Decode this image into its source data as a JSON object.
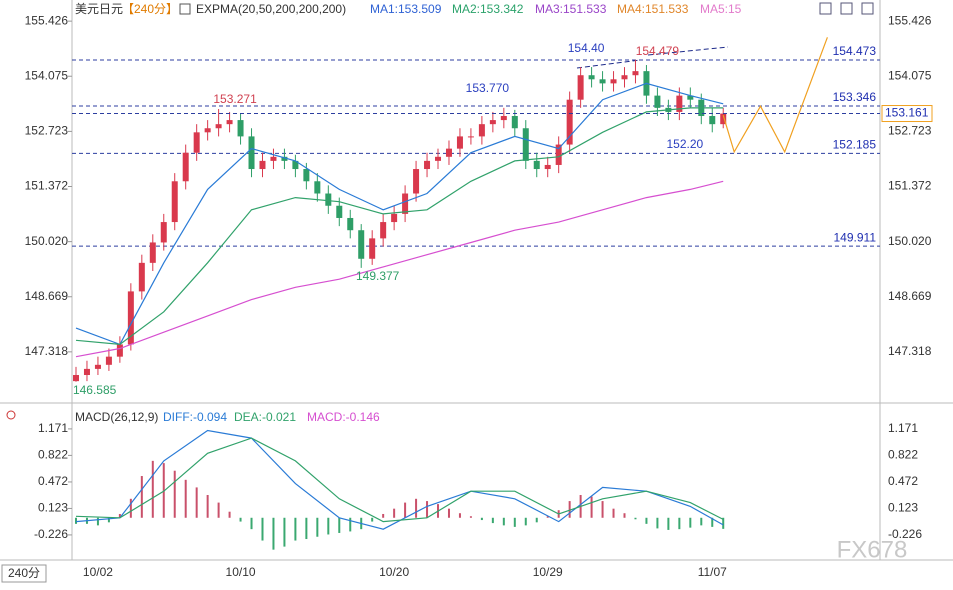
{
  "header": {
    "symbol": "美元日元",
    "period": "【240分】",
    "indicator": "EXPMA(20,50,200,200,200)",
    "indicators": [
      {
        "text": "MA1:153.509",
        "color": "#2f62d4"
      },
      {
        "text": "MA2:153.342",
        "color": "#2aa26a"
      },
      {
        "text": "MA3:151.533",
        "color": "#9a45c8"
      },
      {
        "text": "MA4:151.533",
        "color": "#e0862a"
      },
      {
        "text": "MA5:15",
        "color": "#e27acb"
      }
    ]
  },
  "footer": {
    "period": "240分",
    "watermark": "FX678"
  },
  "chart_data": [
    {
      "type": "candlestick",
      "up_color": "#d9394d",
      "down_color": "#2e9e67",
      "categories": [
        null,
        null,
        "10/02",
        null,
        null,
        null,
        null,
        null,
        null,
        null,
        null,
        null,
        null,
        null,
        null,
        "10/10",
        null,
        null,
        null,
        null,
        null,
        null,
        null,
        null,
        null,
        null,
        null,
        null,
        null,
        "10/20",
        null,
        null,
        null,
        null,
        null,
        null,
        null,
        null,
        null,
        null,
        null,
        null,
        null,
        "10/29",
        null,
        null,
        null,
        null,
        null,
        null,
        null,
        null,
        null,
        null,
        null,
        null,
        null,
        null,
        "11/07",
        null
      ],
      "open": [
        146.6,
        146.75,
        146.9,
        147.0,
        147.2,
        147.5,
        148.8,
        149.5,
        150.0,
        150.5,
        151.5,
        152.2,
        152.7,
        152.8,
        152.9,
        153.0,
        152.6,
        151.8,
        152.0,
        152.1,
        152.0,
        151.8,
        151.5,
        151.2,
        150.9,
        150.6,
        150.3,
        149.6,
        150.1,
        150.5,
        150.7,
        151.2,
        151.8,
        152.0,
        152.1,
        152.3,
        152.6,
        152.6,
        152.9,
        153.0,
        153.1,
        152.8,
        152.0,
        151.8,
        151.9,
        152.4,
        153.5,
        154.1,
        154.0,
        153.9,
        154.0,
        154.1,
        154.2,
        153.6,
        153.3,
        153.2,
        153.6,
        153.5,
        153.1,
        152.9
      ],
      "high": [
        146.95,
        147.1,
        147.2,
        147.4,
        147.7,
        149.0,
        149.7,
        150.2,
        150.7,
        151.7,
        152.4,
        152.9,
        153.0,
        153.271,
        153.2,
        153.15,
        152.8,
        152.2,
        152.3,
        152.3,
        152.15,
        151.95,
        151.7,
        151.4,
        151.1,
        150.8,
        150.45,
        150.3,
        150.7,
        150.9,
        151.4,
        152.0,
        152.2,
        152.3,
        152.5,
        152.8,
        152.8,
        153.1,
        153.2,
        153.3,
        153.25,
        153.0,
        152.2,
        152.1,
        152.6,
        153.7,
        154.3,
        154.3,
        154.2,
        154.2,
        154.3,
        154.479,
        154.35,
        153.8,
        153.5,
        153.8,
        153.8,
        153.65,
        153.3,
        153.3
      ],
      "low": [
        146.585,
        146.6,
        146.75,
        146.85,
        147.05,
        147.35,
        148.6,
        149.3,
        149.8,
        150.3,
        151.3,
        152.0,
        152.5,
        152.6,
        152.7,
        152.4,
        151.6,
        151.6,
        151.8,
        151.8,
        151.6,
        151.3,
        151.0,
        150.7,
        150.4,
        150.1,
        149.377,
        149.45,
        149.9,
        150.3,
        150.5,
        151.0,
        151.6,
        151.8,
        151.9,
        152.1,
        152.4,
        152.4,
        152.7,
        152.8,
        152.6,
        151.8,
        151.6,
        151.6,
        151.7,
        152.2,
        153.3,
        153.8,
        153.7,
        153.7,
        153.8,
        153.9,
        153.4,
        153.1,
        153.0,
        153.0,
        153.3,
        152.9,
        152.7,
        152.8
      ],
      "close": [
        146.75,
        146.9,
        147.0,
        147.2,
        147.5,
        148.8,
        149.5,
        150.0,
        150.5,
        151.5,
        152.2,
        152.7,
        152.8,
        152.9,
        153.0,
        152.6,
        151.8,
        152.0,
        152.1,
        152.0,
        151.8,
        151.5,
        151.2,
        150.9,
        150.6,
        150.3,
        149.6,
        150.1,
        150.5,
        150.7,
        151.2,
        151.8,
        152.0,
        152.1,
        152.3,
        152.6,
        152.6,
        152.9,
        153.0,
        153.1,
        152.8,
        152.0,
        151.8,
        151.9,
        152.4,
        153.5,
        154.1,
        154.0,
        153.9,
        154.0,
        154.1,
        154.2,
        153.6,
        153.3,
        153.2,
        153.6,
        153.5,
        153.1,
        152.9,
        153.16
      ],
      "series": [
        {
          "color": "#2a7bd6",
          "x": [
            0,
            4,
            8,
            12,
            16,
            20,
            24,
            28,
            32,
            36,
            40,
            44,
            48,
            52,
            56,
            59
          ],
          "values": [
            147.9,
            147.5,
            149.5,
            151.3,
            152.3,
            152.0,
            151.3,
            150.8,
            151.2,
            152.2,
            152.6,
            152.3,
            153.5,
            153.9,
            153.6,
            153.4
          ]
        },
        {
          "color": "#31a26b",
          "x": [
            0,
            4,
            8,
            12,
            16,
            20,
            24,
            28,
            32,
            36,
            40,
            44,
            48,
            52,
            56,
            59
          ],
          "values": [
            147.6,
            147.5,
            148.3,
            149.5,
            150.8,
            151.1,
            151.0,
            150.7,
            150.8,
            151.5,
            152.0,
            152.1,
            152.7,
            153.2,
            153.3,
            153.3
          ]
        },
        {
          "color": "#d64fd0",
          "x": [
            0,
            4,
            8,
            12,
            16,
            20,
            24,
            28,
            32,
            36,
            40,
            44,
            48,
            52,
            56,
            59
          ],
          "values": [
            147.2,
            147.4,
            147.8,
            148.2,
            148.6,
            148.9,
            149.1,
            149.4,
            149.7,
            150.0,
            150.3,
            150.5,
            150.8,
            151.1,
            151.3,
            151.5
          ]
        },
        {
          "color": "#f0a020",
          "x": [
            59,
            60,
            62.4,
            64.6,
            68.5
          ],
          "values": [
            153.12,
            152.22,
            153.34,
            152.22,
            155.03
          ]
        }
      ],
      "levels": [
        154.473,
        153.346,
        152.185,
        149.911
      ],
      "last_price": 153.161,
      "annotations": [
        {
          "value": 153.271,
          "label": "153.271",
          "x": 14.5,
          "color": "#d04050"
        },
        {
          "value": 149.377,
          "label": "149.377",
          "x": 27.5,
          "color": "#2e9e67"
        },
        {
          "value": 146.585,
          "label": "146.585",
          "x": 1.7,
          "color": "#2e9e67"
        },
        {
          "value": 154.4,
          "label": "154.40",
          "x": 46.5,
          "color": "#2a3fbf"
        },
        {
          "value": 154.479,
          "label": "154.479",
          "x": 53,
          "color": "#d04050"
        },
        {
          "value": 153.77,
          "label": "153.770",
          "x": 37.5,
          "color": "#2a3fbf"
        },
        {
          "value": 152.2,
          "label": "152.20",
          "x": 55.5,
          "color": "#2a3fbf"
        }
      ],
      "xlim": [
        -0.4,
        73.3
      ],
      "ylim": [
        146.26,
        155.65
      ],
      "yticks": [
        155.426,
        154.075,
        {
          "value": 152.723,
          "label": "152.723"
        },
        151.372,
        {
          "value": 150.02,
          "label": "150.020"
        },
        148.669,
        147.318
      ]
    },
    {
      "type": "macd",
      "title": "MACD(26,12,9)",
      "labels": [
        {
          "text": "DIFF:-0.094",
          "color": "#2a7bd6"
        },
        {
          "text": "DEA:-0.021",
          "color": "#31a26b"
        },
        {
          "text": "MACD:-0.146",
          "color": "#d64fd0"
        }
      ],
      "up_color": "#c9506a",
      "down_color": "#3aa870",
      "histogram": [
        -0.08,
        -0.08,
        -0.1,
        -0.06,
        0.05,
        0.25,
        0.55,
        0.75,
        0.72,
        0.62,
        0.5,
        0.4,
        0.3,
        0.2,
        0.08,
        -0.05,
        -0.15,
        -0.3,
        -0.42,
        -0.38,
        -0.3,
        -0.28,
        -0.25,
        -0.22,
        -0.2,
        -0.18,
        -0.15,
        -0.05,
        0.05,
        0.12,
        0.2,
        0.25,
        0.22,
        0.18,
        0.12,
        0.06,
        0.02,
        -0.03,
        -0.07,
        -0.1,
        -0.12,
        -0.1,
        -0.06,
        0.02,
        0.1,
        0.22,
        0.3,
        0.28,
        0.22,
        0.12,
        0.06,
        -0.02,
        -0.08,
        -0.14,
        -0.16,
        -0.15,
        -0.13,
        -0.1,
        -0.12,
        -0.146
      ],
      "series": [
        {
          "color": "#2a7bd6",
          "x": [
            0,
            4,
            8,
            12,
            16,
            20,
            24,
            28,
            32,
            36,
            40,
            44,
            48,
            52,
            56,
            59
          ],
          "values": [
            -0.05,
            0.0,
            0.75,
            1.15,
            1.05,
            0.45,
            0.0,
            -0.15,
            0.15,
            0.35,
            0.25,
            -0.05,
            0.4,
            0.35,
            0.15,
            -0.094
          ]
        },
        {
          "color": "#31a26b",
          "x": [
            0,
            4,
            8,
            12,
            16,
            20,
            24,
            28,
            32,
            36,
            40,
            44,
            48,
            52,
            56,
            59
          ],
          "values": [
            0.02,
            0.0,
            0.35,
            0.85,
            1.05,
            0.75,
            0.25,
            -0.05,
            0.0,
            0.35,
            0.35,
            0.05,
            0.25,
            0.35,
            0.2,
            -0.021
          ]
        }
      ],
      "xlim": [
        -0.4,
        73.3
      ],
      "ylim": [
        -0.53,
        1.42
      ],
      "yticks": [
        1.171,
        0.822,
        0.472,
        0.123,
        -0.226
      ]
    }
  ]
}
